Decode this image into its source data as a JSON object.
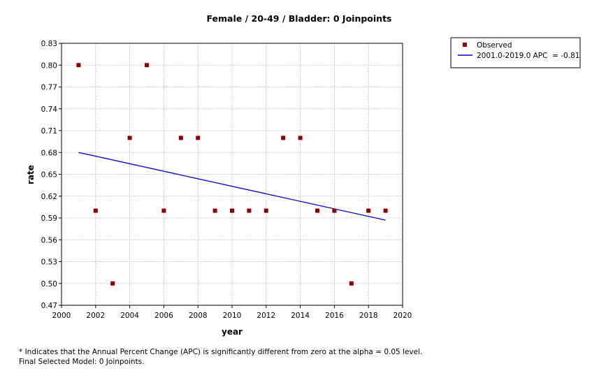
{
  "chart_data": {
    "type": "scatter",
    "title": "Female / 20-49 / Bladder: 0 Joinpoints",
    "xlabel": "year",
    "ylabel": "rate",
    "xlim": [
      2000,
      2020
    ],
    "ylim": [
      0.47,
      0.83
    ],
    "xticks": [
      "2000",
      "2002",
      "2004",
      "2006",
      "2008",
      "2010",
      "2012",
      "2014",
      "2016",
      "2018",
      "2020"
    ],
    "yticks": [
      "0.47",
      "0.50",
      "0.53",
      "0.56",
      "0.59",
      "0.62",
      "0.65",
      "0.68",
      "0.71",
      "0.74",
      "0.77",
      "0.80",
      "0.83"
    ],
    "grid": true,
    "legend_position": "top-right, outside plot",
    "series": [
      {
        "name": "Observed",
        "kind": "points",
        "color": "#8b0000",
        "x": [
          2001,
          2002,
          2003,
          2004,
          2005,
          2006,
          2007,
          2008,
          2009,
          2010,
          2011,
          2012,
          2013,
          2014,
          2015,
          2016,
          2017,
          2018,
          2019
        ],
        "y": [
          0.8,
          0.6,
          0.5,
          0.7,
          0.8,
          0.6,
          0.7,
          0.7,
          0.6,
          0.6,
          0.6,
          0.6,
          0.7,
          0.7,
          0.6,
          0.6,
          0.5,
          0.6,
          0.6
        ]
      },
      {
        "name": "2001.0-2019.0 APC  = -0.81",
        "kind": "line",
        "color": "#0000cd",
        "x": [
          2001,
          2019
        ],
        "y": [
          0.68,
          0.587
        ]
      }
    ]
  },
  "footnotes": [
    "* Indicates that the Annual Percent Change (APC) is significantly different from zero at the alpha = 0.05 level.",
    "Final Selected Model: 0 Joinpoints."
  ]
}
